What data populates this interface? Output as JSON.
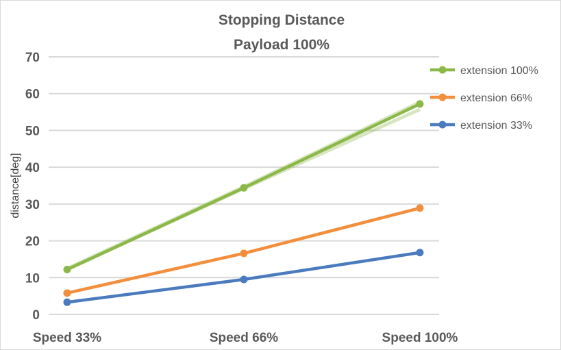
{
  "chart_data": {
    "type": "line",
    "title": "Stopping Distance",
    "subtitle": "Payload 100%",
    "xlabel": "",
    "ylabel": "distance[deg]",
    "categories": [
      "Speed 33%",
      "Speed 66%",
      "Speed 100%"
    ],
    "ylim": [
      0,
      70
    ],
    "yticks": [
      0,
      10,
      20,
      30,
      40,
      50,
      60,
      70
    ],
    "grid": true,
    "legend": "right",
    "series": [
      {
        "name": "extension 100%",
        "values": [
          12.2,
          34.4,
          57.2
        ],
        "color": "#8cb84a"
      },
      {
        "name": "extension 66%",
        "values": [
          5.8,
          16.6,
          28.9
        ],
        "color": "#f28e3c"
      },
      {
        "name": "extension 33%",
        "values": [
          3.3,
          9.5,
          16.8
        ],
        "color": "#4a7bbf"
      }
    ]
  }
}
